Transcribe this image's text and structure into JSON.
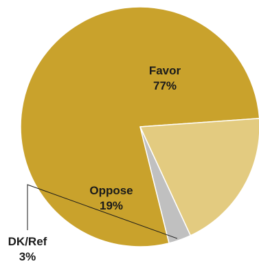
{
  "chart_data": {
    "type": "pie",
    "title": "",
    "slices": [
      {
        "label": "Favor",
        "value": 77,
        "display": "77%",
        "color": "#c9a22c"
      },
      {
        "label": "Oppose",
        "value": 19,
        "display": "19%",
        "color": "#e3cb80"
      },
      {
        "label": "DK/Ref",
        "value": 3,
        "display": "3%",
        "color": "#c0c0c0"
      }
    ],
    "start": "Favor slice begins at the bottom and runs clockwise over the top; labels on slices except DK/Ref, which is labeled outside at bottom-left with a leader line"
  }
}
